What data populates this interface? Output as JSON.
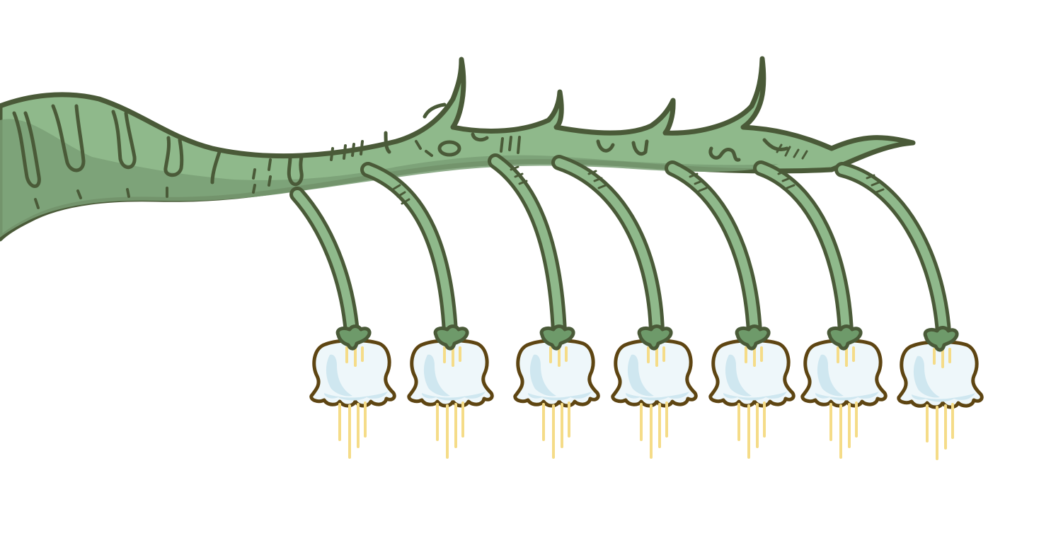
{
  "scene": {
    "subject": "stylized-lily-of-the-valley-branch",
    "bell_count": 7,
    "colors": {
      "background": "#ffffff",
      "branch_fill": "#8fb98b",
      "branch_shadow": "#7a9f76",
      "outline": "#4a5a38",
      "bell_fill": "#eef7fa",
      "bell_shade": "#cfe7f0",
      "bell_outline": "#5e4512",
      "stamen": "#f5dc88",
      "calyx": "#6e9a6a"
    }
  }
}
